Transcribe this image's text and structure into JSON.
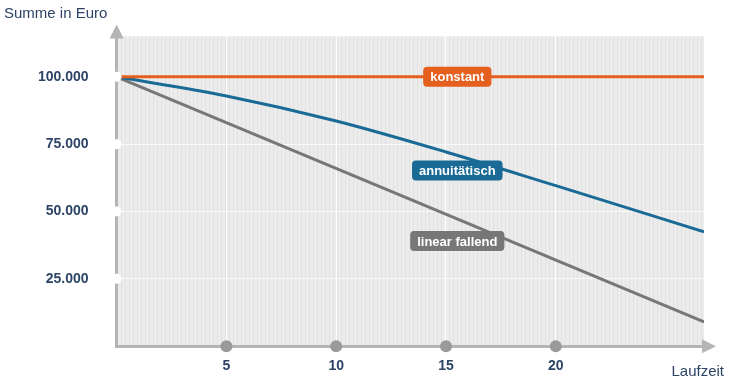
{
  "chart_data": {
    "type": "line",
    "x_label": "Laufzeit",
    "y_label": "Summe in Euro",
    "xlim": [
      0,
      26.75
    ],
    "xticks": [
      5,
      10,
      15,
      20
    ],
    "ylim": [
      0,
      115000
    ],
    "yticks": [
      {
        "value": 25000,
        "label": "25.000"
      },
      {
        "value": 50000,
        "label": "50.000"
      },
      {
        "value": 75000,
        "label": "75.000"
      },
      {
        "value": 100000,
        "label": "100.000"
      }
    ],
    "grid": true,
    "series": [
      {
        "name": "konstant",
        "color": "#e5601f",
        "x": [
          0,
          26.75
        ],
        "values": [
          100000,
          100000
        ]
      },
      {
        "name": "annuitätisch",
        "color": "#1a6a96",
        "x": [
          0,
          5,
          10,
          15,
          20,
          26.75
        ],
        "values": [
          100000,
          92900,
          83600,
          72100,
          59600,
          42500
        ]
      },
      {
        "name": "linear fallend",
        "color": "#777777",
        "x": [
          0,
          26.75
        ],
        "values": [
          100000,
          9000
        ]
      }
    ]
  }
}
